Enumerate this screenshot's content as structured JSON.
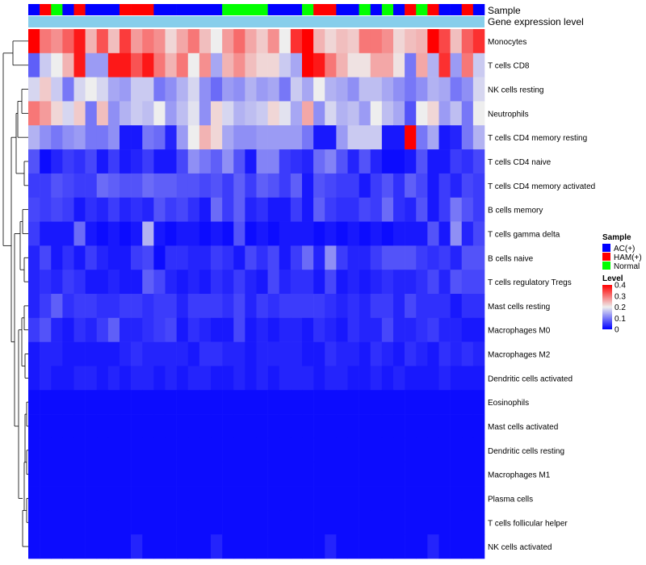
{
  "chart_data": {
    "type": "heatmap",
    "title": "",
    "annotation_tracks": [
      "Sample",
      "Gene expression level"
    ],
    "sample_groups": [
      "AC(+)",
      "HAM(+)",
      "Normal",
      "AC(+)",
      "HAM(+)",
      "AC(+)",
      "AC(+)",
      "AC(+)",
      "HAM(+)",
      "HAM(+)",
      "HAM(+)",
      "AC(+)",
      "AC(+)",
      "AC(+)",
      "AC(+)",
      "AC(+)",
      "AC(+)",
      "Normal",
      "Normal",
      "Normal",
      "Normal",
      "AC(+)",
      "AC(+)",
      "AC(+)",
      "Normal",
      "HAM(+)",
      "HAM(+)",
      "AC(+)",
      "AC(+)",
      "Normal",
      "AC(+)",
      "Normal",
      "AC(+)",
      "HAM(+)",
      "Normal",
      "HAM(+)",
      "AC(+)",
      "AC(+)",
      "HAM(+)",
      "AC(+)"
    ],
    "row_labels": [
      "Monocytes",
      "T cells CD8",
      "NK cells resting",
      "Neutrophils",
      "T cells CD4 memory resting",
      "T cells CD4 naive",
      "T cells CD4 memory activated",
      "B cells memory",
      "T cells gamma delta",
      "B cells naive",
      "T cells regulatory  Tregs",
      "Mast cells resting",
      "Macrophages M0",
      "Macrophages M2",
      "Dendritic cells activated",
      "Eosinophils",
      "Mast cells activated",
      "Dendritic cells resting",
      "Macrophages M1",
      "Plasma cells",
      "T cells follicular helper",
      "NK cells activated"
    ],
    "values": [
      [
        0.4,
        0.3,
        0.28,
        0.32,
        0.38,
        0.25,
        0.33,
        0.24,
        0.35,
        0.27,
        0.3,
        0.28,
        0.22,
        0.26,
        0.3,
        0.24,
        0.2,
        0.27,
        0.31,
        0.26,
        0.23,
        0.28,
        0.2,
        0.36,
        0.4,
        0.25,
        0.22,
        0.24,
        0.23,
        0.3,
        0.3,
        0.28,
        0.22,
        0.24,
        0.25,
        0.4,
        0.34,
        0.24,
        0.32,
        0.36
      ],
      [
        0.08,
        0.17,
        0.2,
        0.25,
        0.38,
        0.13,
        0.13,
        0.38,
        0.38,
        0.33,
        0.38,
        0.3,
        0.25,
        0.3,
        0.2,
        0.28,
        0.14,
        0.25,
        0.28,
        0.24,
        0.22,
        0.22,
        0.17,
        0.14,
        0.4,
        0.38,
        0.3,
        0.25,
        0.21,
        0.21,
        0.26,
        0.26,
        0.21,
        0.1,
        0.26,
        0.15,
        0.36,
        0.13,
        0.3,
        0.17
      ],
      [
        0.18,
        0.23,
        0.17,
        0.1,
        0.18,
        0.2,
        0.18,
        0.14,
        0.13,
        0.17,
        0.17,
        0.1,
        0.12,
        0.15,
        0.18,
        0.12,
        0.09,
        0.13,
        0.12,
        0.15,
        0.13,
        0.14,
        0.1,
        0.17,
        0.14,
        0.2,
        0.15,
        0.14,
        0.12,
        0.16,
        0.16,
        0.14,
        0.12,
        0.1,
        0.12,
        0.15,
        0.14,
        0.1,
        0.12,
        0.18
      ],
      [
        0.3,
        0.27,
        0.22,
        0.18,
        0.23,
        0.1,
        0.24,
        0.12,
        0.15,
        0.17,
        0.16,
        0.2,
        0.13,
        0.16,
        0.19,
        0.12,
        0.22,
        0.18,
        0.15,
        0.16,
        0.17,
        0.22,
        0.19,
        0.14,
        0.26,
        0.12,
        0.18,
        0.15,
        0.16,
        0.13,
        0.2,
        0.16,
        0.14,
        0.07,
        0.2,
        0.22,
        0.13,
        0.16,
        0.1,
        0.2
      ],
      [
        0.15,
        0.12,
        0.1,
        0.12,
        0.13,
        0.1,
        0.1,
        0.12,
        0.02,
        0.02,
        0.1,
        0.09,
        0.03,
        0.13,
        0.2,
        0.25,
        0.22,
        0.14,
        0.12,
        0.12,
        0.13,
        0.13,
        0.13,
        0.13,
        0.1,
        0.02,
        0.02,
        0.13,
        0.17,
        0.17,
        0.17,
        0.02,
        0.02,
        0.4,
        0.1,
        0.14,
        0.02,
        0.03,
        0.1,
        0.15
      ],
      [
        0.07,
        0.01,
        0.03,
        0.05,
        0.04,
        0.06,
        0.02,
        0.05,
        0.02,
        0.03,
        0.05,
        0.02,
        0.02,
        0.06,
        0.12,
        0.1,
        0.08,
        0.12,
        0.07,
        0.02,
        0.11,
        0.11,
        0.05,
        0.04,
        0.03,
        0.09,
        0.11,
        0.07,
        0.03,
        0.07,
        0.03,
        0.01,
        0.01,
        0.02,
        0.07,
        0.02,
        0.02,
        0.05,
        0.04,
        0.06
      ],
      [
        0.05,
        0.05,
        0.07,
        0.06,
        0.05,
        0.05,
        0.09,
        0.08,
        0.07,
        0.07,
        0.09,
        0.08,
        0.08,
        0.07,
        0.07,
        0.06,
        0.07,
        0.05,
        0.08,
        0.05,
        0.08,
        0.07,
        0.05,
        0.08,
        0.02,
        0.07,
        0.06,
        0.05,
        0.05,
        0.02,
        0.05,
        0.07,
        0.04,
        0.08,
        0.06,
        0.02,
        0.05,
        0.03,
        0.06,
        0.05
      ],
      [
        0.06,
        0.05,
        0.06,
        0.05,
        0.02,
        0.04,
        0.03,
        0.05,
        0.03,
        0.04,
        0.03,
        0.07,
        0.05,
        0.06,
        0.04,
        0.02,
        0.09,
        0.05,
        0.08,
        0.03,
        0.04,
        0.02,
        0.02,
        0.05,
        0.02,
        0.08,
        0.05,
        0.04,
        0.04,
        0.06,
        0.05,
        0.09,
        0.04,
        0.03,
        0.07,
        0.02,
        0.05,
        0.1,
        0.07,
        0.05
      ],
      [
        0.05,
        0.02,
        0.02,
        0.02,
        0.09,
        0.02,
        0.01,
        0.02,
        0.01,
        0.02,
        0.15,
        0.02,
        0.01,
        0.02,
        0.02,
        0.01,
        0.02,
        0.01,
        0.07,
        0.01,
        0.02,
        0.01,
        0.02,
        0.02,
        0.02,
        0.01,
        0.02,
        0.01,
        0.02,
        0.01,
        0.02,
        0.01,
        0.02,
        0.02,
        0.02,
        0.07,
        0.02,
        0.12,
        0.03,
        0.06
      ],
      [
        0.03,
        0.06,
        0.02,
        0.04,
        0.02,
        0.05,
        0.03,
        0.02,
        0.02,
        0.05,
        0.06,
        0.01,
        0.04,
        0.04,
        0.03,
        0.03,
        0.05,
        0.04,
        0.02,
        0.06,
        0.04,
        0.06,
        0.02,
        0.05,
        0.09,
        0.03,
        0.12,
        0.05,
        0.03,
        0.03,
        0.05,
        0.07,
        0.07,
        0.07,
        0.05,
        0.04,
        0.05,
        0.03,
        0.07,
        0.07
      ],
      [
        0.03,
        0.04,
        0.03,
        0.05,
        0.04,
        0.02,
        0.02,
        0.03,
        0.02,
        0.02,
        0.08,
        0.06,
        0.03,
        0.02,
        0.03,
        0.02,
        0.04,
        0.03,
        0.05,
        0.03,
        0.02,
        0.06,
        0.03,
        0.04,
        0.04,
        0.02,
        0.06,
        0.02,
        0.03,
        0.02,
        0.03,
        0.04,
        0.03,
        0.03,
        0.04,
        0.06,
        0.03,
        0.07,
        0.06,
        0.06
      ],
      [
        0.03,
        0.05,
        0.08,
        0.04,
        0.05,
        0.05,
        0.04,
        0.04,
        0.05,
        0.05,
        0.04,
        0.05,
        0.05,
        0.03,
        0.05,
        0.05,
        0.05,
        0.04,
        0.06,
        0.03,
        0.05,
        0.04,
        0.05,
        0.05,
        0.05,
        0.05,
        0.04,
        0.03,
        0.04,
        0.03,
        0.05,
        0.05,
        0.03,
        0.06,
        0.04,
        0.04,
        0.04,
        0.02,
        0.04,
        0.04
      ],
      [
        0.05,
        0.07,
        0.03,
        0.02,
        0.04,
        0.03,
        0.05,
        0.08,
        0.03,
        0.03,
        0.04,
        0.05,
        0.06,
        0.02,
        0.04,
        0.03,
        0.02,
        0.02,
        0.06,
        0.02,
        0.03,
        0.02,
        0.03,
        0.03,
        0.02,
        0.04,
        0.03,
        0.02,
        0.04,
        0.03,
        0.03,
        0.06,
        0.03,
        0.03,
        0.04,
        0.05,
        0.03,
        0.03,
        0.02,
        0.02
      ],
      [
        0.02,
        0.03,
        0.03,
        0.02,
        0.02,
        0.02,
        0.02,
        0.02,
        0.03,
        0.04,
        0.03,
        0.03,
        0.03,
        0.03,
        0.02,
        0.04,
        0.04,
        0.03,
        0.03,
        0.02,
        0.03,
        0.03,
        0.03,
        0.03,
        0.02,
        0.02,
        0.04,
        0.03,
        0.03,
        0.02,
        0.04,
        0.03,
        0.02,
        0.04,
        0.03,
        0.02,
        0.04,
        0.03,
        0.04,
        0.03
      ],
      [
        0.02,
        0.03,
        0.02,
        0.02,
        0.03,
        0.03,
        0.02,
        0.03,
        0.02,
        0.03,
        0.03,
        0.02,
        0.03,
        0.02,
        0.03,
        0.03,
        0.02,
        0.02,
        0.03,
        0.02,
        0.03,
        0.02,
        0.03,
        0.03,
        0.03,
        0.02,
        0.03,
        0.03,
        0.02,
        0.02,
        0.03,
        0.02,
        0.03,
        0.02,
        0.02,
        0.02,
        0.03,
        0.02,
        0.02,
        0.02
      ],
      [
        0.01,
        0.01,
        0.01,
        0.01,
        0.01,
        0.01,
        0.01,
        0.01,
        0.01,
        0.01,
        0.01,
        0.01,
        0.01,
        0.01,
        0.01,
        0.01,
        0.01,
        0.01,
        0.01,
        0.01,
        0.01,
        0.01,
        0.01,
        0.01,
        0.01,
        0.01,
        0.01,
        0.01,
        0.01,
        0.01,
        0.01,
        0.01,
        0.01,
        0.01,
        0.01,
        0.01,
        0.01,
        0.01,
        0.01,
        0.01
      ],
      [
        0.01,
        0.01,
        0.01,
        0.01,
        0.01,
        0.01,
        0.01,
        0.01,
        0.01,
        0.01,
        0.01,
        0.01,
        0.01,
        0.01,
        0.01,
        0.01,
        0.01,
        0.01,
        0.01,
        0.01,
        0.01,
        0.01,
        0.01,
        0.01,
        0.01,
        0.01,
        0.01,
        0.01,
        0.01,
        0.01,
        0.01,
        0.01,
        0.01,
        0.01,
        0.01,
        0.01,
        0.01,
        0.01,
        0.01,
        0.01
      ],
      [
        0.01,
        0.01,
        0.01,
        0.01,
        0.01,
        0.01,
        0.01,
        0.01,
        0.01,
        0.01,
        0.01,
        0.01,
        0.01,
        0.01,
        0.01,
        0.01,
        0.01,
        0.01,
        0.01,
        0.01,
        0.01,
        0.01,
        0.01,
        0.01,
        0.01,
        0.01,
        0.01,
        0.01,
        0.01,
        0.01,
        0.01,
        0.01,
        0.01,
        0.01,
        0.01,
        0.01,
        0.01,
        0.01,
        0.01,
        0.01
      ],
      [
        0.01,
        0.01,
        0.01,
        0.01,
        0.01,
        0.01,
        0.01,
        0.01,
        0.01,
        0.01,
        0.01,
        0.01,
        0.01,
        0.01,
        0.01,
        0.01,
        0.01,
        0.01,
        0.01,
        0.01,
        0.01,
        0.01,
        0.01,
        0.01,
        0.01,
        0.01,
        0.01,
        0.01,
        0.01,
        0.01,
        0.01,
        0.01,
        0.01,
        0.01,
        0.01,
        0.01,
        0.01,
        0.01,
        0.01,
        0.01
      ],
      [
        0.01,
        0.01,
        0.01,
        0.01,
        0.01,
        0.01,
        0.01,
        0.01,
        0.01,
        0.01,
        0.01,
        0.01,
        0.01,
        0.01,
        0.01,
        0.01,
        0.01,
        0.01,
        0.01,
        0.01,
        0.01,
        0.01,
        0.01,
        0.01,
        0.01,
        0.01,
        0.01,
        0.01,
        0.01,
        0.01,
        0.01,
        0.01,
        0.01,
        0.01,
        0.01,
        0.01,
        0.01,
        0.01,
        0.01,
        0.01
      ],
      [
        0.01,
        0.01,
        0.01,
        0.01,
        0.01,
        0.01,
        0.01,
        0.01,
        0.01,
        0.01,
        0.01,
        0.01,
        0.01,
        0.01,
        0.01,
        0.01,
        0.01,
        0.01,
        0.01,
        0.01,
        0.01,
        0.01,
        0.01,
        0.01,
        0.01,
        0.01,
        0.01,
        0.01,
        0.01,
        0.01,
        0.01,
        0.01,
        0.01,
        0.01,
        0.01,
        0.01,
        0.01,
        0.01,
        0.01,
        0.01
      ],
      [
        0.01,
        0.01,
        0.01,
        0.01,
        0.01,
        0.01,
        0.01,
        0.01,
        0.01,
        0.03,
        0.01,
        0.01,
        0.01,
        0.01,
        0.01,
        0.01,
        0.03,
        0.01,
        0.01,
        0.01,
        0.01,
        0.01,
        0.01,
        0.01,
        0.01,
        0.01,
        0.03,
        0.01,
        0.01,
        0.01,
        0.01,
        0.01,
        0.01,
        0.01,
        0.01,
        0.03,
        0.01,
        0.01,
        0.01,
        0.01
      ]
    ],
    "color_scale": {
      "min": 0,
      "mid": 0.2,
      "max": 0.4,
      "low_color": "#0000ff",
      "mid_color": "#eeeeee",
      "high_color": "#ff0000"
    },
    "legend": {
      "sample_title": "Sample",
      "groups": [
        {
          "label": "AC(+)",
          "color": "#0000ff"
        },
        {
          "label": "HAM(+)",
          "color": "#ff0000"
        },
        {
          "label": "Normal",
          "color": "#00ff00"
        }
      ],
      "level_title": "Level",
      "level_ticks": [
        0.4,
        0.3,
        0.2,
        0.1,
        0
      ],
      "placement": "right"
    },
    "expression_track_color": "#87ceeb"
  }
}
